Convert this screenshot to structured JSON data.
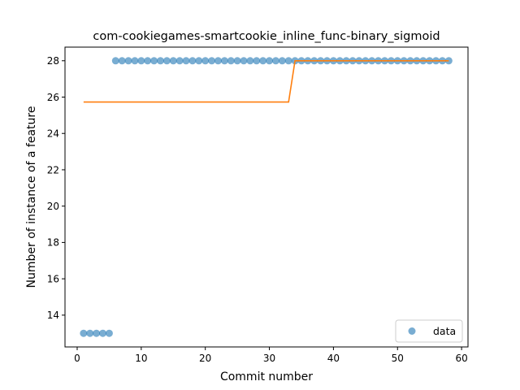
{
  "chart_data": {
    "type": "scatter",
    "title": "com-cookiegames-smartcookie_inline_func-binary_sigmoid",
    "xlabel": "Commit number",
    "ylabel": "Number of instance of a feature",
    "xlim": [
      -1.9,
      61
    ],
    "ylim": [
      12.25,
      28.75
    ],
    "xticks": [
      0,
      10,
      20,
      30,
      40,
      50,
      60
    ],
    "yticks": [
      14,
      16,
      18,
      20,
      22,
      24,
      26,
      28
    ],
    "grid": false,
    "legend": {
      "placement": "lower-right",
      "entries": [
        "data"
      ]
    },
    "colors": {
      "data": "#1f77b4",
      "fit": "#ff7f0e"
    },
    "series": [
      {
        "name": "data",
        "kind": "scatter",
        "x": [
          1,
          2,
          3,
          4,
          5,
          6,
          7,
          8,
          9,
          10,
          11,
          12,
          13,
          14,
          15,
          16,
          17,
          18,
          19,
          20,
          21,
          22,
          23,
          24,
          25,
          26,
          27,
          28,
          29,
          30,
          31,
          32,
          33,
          34,
          35,
          36,
          37,
          38,
          39,
          40,
          41,
          42,
          43,
          44,
          45,
          46,
          47,
          48,
          49,
          50,
          51,
          52,
          53,
          54,
          55,
          56,
          57,
          58
        ],
        "y": [
          13,
          13,
          13,
          13,
          13,
          28,
          28,
          28,
          28,
          28,
          28,
          28,
          28,
          28,
          28,
          28,
          28,
          28,
          28,
          28,
          28,
          28,
          28,
          28,
          28,
          28,
          28,
          28,
          28,
          28,
          28,
          28,
          28,
          28,
          28,
          28,
          28,
          28,
          28,
          28,
          28,
          28,
          28,
          28,
          28,
          28,
          28,
          28,
          28,
          28,
          28,
          28,
          28,
          28,
          28,
          28,
          28,
          28
        ]
      },
      {
        "kind": "line",
        "x": [
          1,
          33,
          34,
          58
        ],
        "y": [
          25.73,
          25.73,
          28,
          28
        ]
      }
    ]
  }
}
